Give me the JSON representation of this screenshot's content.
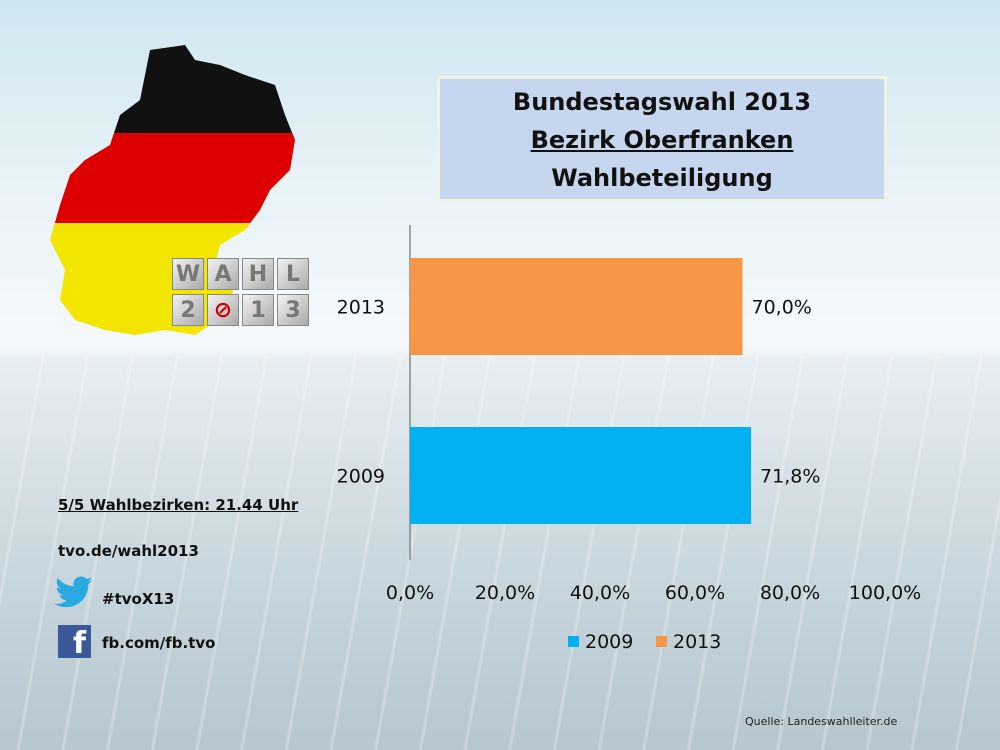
{
  "title": {
    "line1": "Bundestagswahl 2013",
    "line2": "Bezirk Oberfranken",
    "line3": "Wahlbeteiligung"
  },
  "logo": {
    "text_top": "WAHL",
    "text_bottom": "2013"
  },
  "info": {
    "status": "5/5 Wahlbezirken: 21.44 Uhr",
    "website": "tvo.de/wahl2013",
    "twitter": "#tvoX13",
    "facebook": "fb.com/fb.tvo"
  },
  "icons": {
    "twitter": "twitter-bird-icon",
    "facebook": "facebook-icon"
  },
  "source": "Quelle: Landeswahlleiter.de",
  "chart_data": {
    "type": "bar",
    "orientation": "horizontal",
    "categories": [
      "2013",
      "2009"
    ],
    "values": [
      70.0,
      71.8
    ],
    "value_labels": [
      "70,0%",
      "71,8%"
    ],
    "colors": [
      "#f79646",
      "#00b0f0"
    ],
    "xlim": [
      0,
      100
    ],
    "x_ticks": [
      "0,0%",
      "20,0%",
      "40,0%",
      "60,0%",
      "80,0%",
      "100,0%"
    ],
    "legend": [
      {
        "name": "2009",
        "color": "#00b0f0"
      },
      {
        "name": "2013",
        "color": "#f79646"
      }
    ],
    "legend_position": "bottom"
  }
}
